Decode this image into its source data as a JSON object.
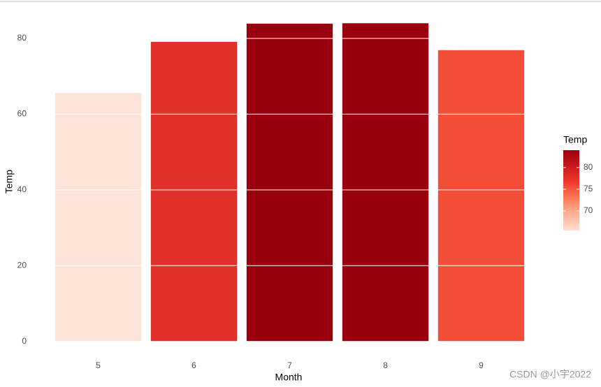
{
  "chart_data": {
    "type": "bar",
    "x_label": "Month",
    "y_label": "Temp",
    "categories": [
      "5",
      "6",
      "7",
      "8",
      "9"
    ],
    "values": [
      65.6,
      79.1,
      83.9,
      84,
      76.9
    ],
    "colors": [
      "#fee3d8",
      "#e0302a",
      "#99000d",
      "#99000d",
      "#f34e38"
    ],
    "ylim": [
      -3,
      88
    ],
    "yticks": [
      0,
      20,
      40,
      60,
      80
    ],
    "grid": true,
    "legend": {
      "title": "Temp",
      "position": "right",
      "lim": [
        65.5,
        84
      ],
      "ticks": [
        70,
        75,
        80
      ],
      "colors": [
        "#fee0d2",
        "#fcb499",
        "#fb7b5b",
        "#ef3b2c",
        "#cb181d",
        "#99000d"
      ]
    },
    "watermark": "CSDN @小宇2022"
  }
}
